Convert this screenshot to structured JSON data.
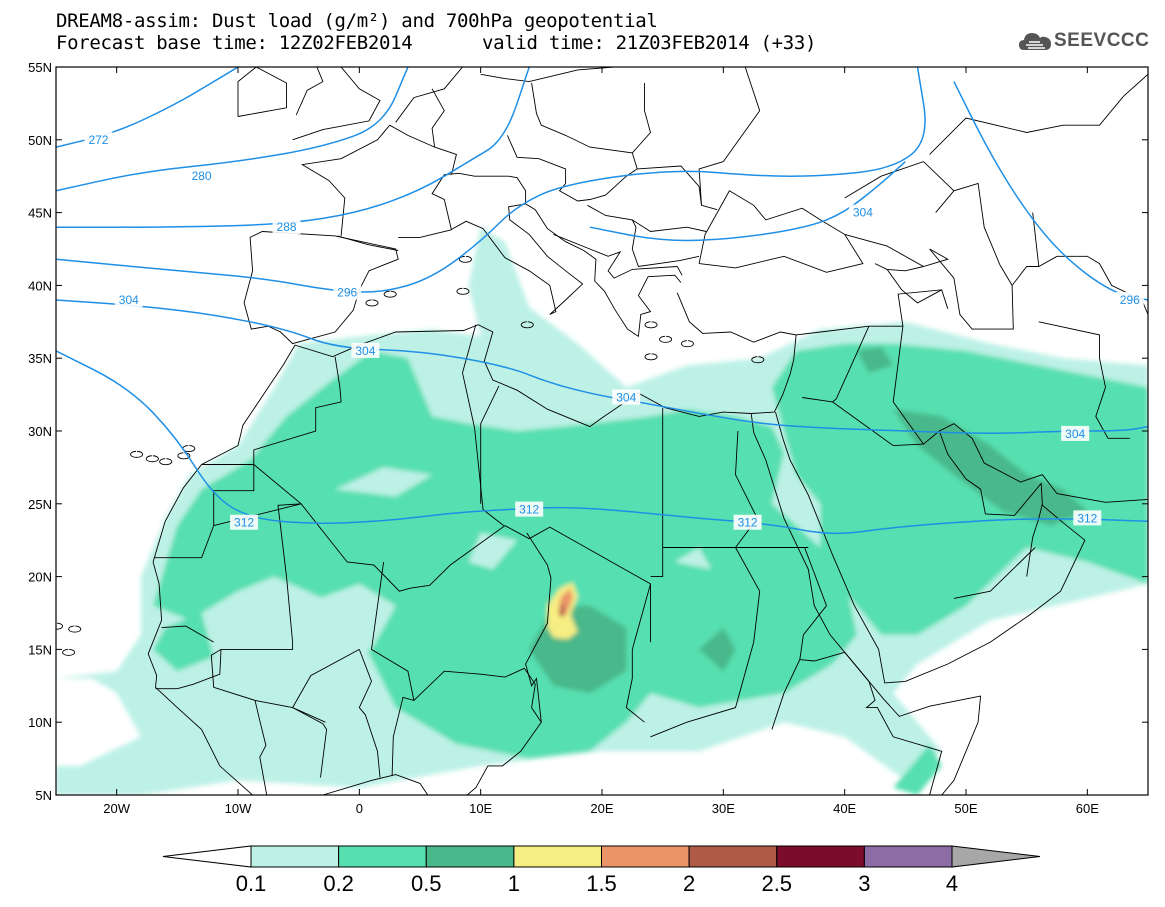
{
  "title": {
    "line1": "DREAM8-assim: Dust load (g/m²) and 700hPa geopotential",
    "base_time": "Forecast base time: 12Z02FEB2014",
    "valid_time": "valid time: 21Z03FEB2014 (+33)"
  },
  "logo": {
    "text": "SEEVCCC",
    "icon": "cloud-icon"
  },
  "map": {
    "lon_range": [
      -25,
      65
    ],
    "lat_range": [
      5,
      55
    ],
    "lat_ticks": [
      {
        "value": 55,
        "label": "55N"
      },
      {
        "value": 50,
        "label": "50N"
      },
      {
        "value": 45,
        "label": "45N"
      },
      {
        "value": 40,
        "label": "40N"
      },
      {
        "value": 35,
        "label": "35N"
      },
      {
        "value": 30,
        "label": "30N"
      },
      {
        "value": 25,
        "label": "25N"
      },
      {
        "value": 20,
        "label": "20N"
      },
      {
        "value": 15,
        "label": "15N"
      },
      {
        "value": 10,
        "label": "10N"
      },
      {
        "value": 5,
        "label": "5N"
      }
    ],
    "lon_ticks": [
      {
        "value": -20,
        "label": "20W"
      },
      {
        "value": -10,
        "label": "10W"
      },
      {
        "value": 0,
        "label": "0"
      },
      {
        "value": 10,
        "label": "10E"
      },
      {
        "value": 20,
        "label": "20E"
      },
      {
        "value": 30,
        "label": "30E"
      },
      {
        "value": 40,
        "label": "40E"
      },
      {
        "value": 50,
        "label": "50E"
      },
      {
        "value": 60,
        "label": "60E"
      }
    ],
    "contour_color": "#1f8fe6",
    "contours": [
      {
        "level": "272",
        "points": [
          [
            -25,
            49.5
          ],
          [
            -20,
            50.5
          ],
          [
            -15,
            52.5
          ],
          [
            -12,
            54
          ],
          [
            -10,
            55
          ]
        ],
        "label_at": [
          -21.5,
          50
        ]
      },
      {
        "level": "280",
        "points": [
          [
            -25,
            46.5
          ],
          [
            -18,
            47.8
          ],
          [
            -10,
            48.5
          ],
          [
            -3,
            49.5
          ],
          [
            2,
            51
          ],
          [
            4,
            55
          ]
        ],
        "label_at": [
          -13,
          47.5
        ]
      },
      {
        "level": "288",
        "points": [
          [
            -25,
            44
          ],
          [
            -15,
            44
          ],
          [
            -6,
            44.2
          ],
          [
            0,
            45
          ],
          [
            5,
            46.5
          ],
          [
            9,
            48.5
          ],
          [
            12,
            50
          ],
          [
            14,
            55
          ]
        ],
        "label_at": [
          -6,
          44
        ]
      },
      {
        "level": "296",
        "points": [
          [
            -25,
            41.8
          ],
          [
            -15,
            41
          ],
          [
            -8,
            40.5
          ],
          [
            -2,
            39.6
          ],
          [
            2,
            39.5
          ],
          [
            6,
            40.5
          ],
          [
            10,
            43
          ],
          [
            13,
            45.5
          ],
          [
            17,
            47
          ],
          [
            26,
            48
          ],
          [
            33,
            47.5
          ],
          [
            38,
            47.5
          ],
          [
            44,
            48
          ],
          [
            47,
            50
          ],
          [
            46,
            55
          ]
        ],
        "label_at": [
          -1,
          39.5
        ]
      },
      {
        "level": "304",
        "points": [
          [
            -25,
            39
          ],
          [
            -18,
            38.6
          ],
          [
            -12,
            38
          ],
          [
            -6,
            37
          ],
          [
            -2,
            35.7
          ],
          [
            5,
            35.5
          ],
          [
            12,
            34.5
          ],
          [
            16,
            33.2
          ],
          [
            20,
            32.4
          ],
          [
            23,
            32
          ],
          [
            28,
            31.2
          ],
          [
            33,
            30.5
          ],
          [
            38,
            30.2
          ],
          [
            45,
            30
          ],
          [
            52,
            29.8
          ],
          [
            58,
            30
          ],
          [
            63,
            30
          ],
          [
            65,
            30.3
          ]
        ],
        "label_at": [
          -19,
          39
        ],
        "label_at2": [
          0.5,
          35.5
        ],
        "label_at3": [
          22,
          32.3
        ],
        "label_at4": [
          59,
          29.8
        ]
      },
      {
        "level": "304",
        "points": [
          [
            19,
            44
          ],
          [
            25,
            43
          ],
          [
            31,
            43.2
          ],
          [
            37,
            44
          ],
          [
            40,
            45
          ],
          [
            43,
            47
          ],
          [
            45,
            48.5
          ]
        ],
        "label_at": [
          41.5,
          45
        ]
      },
      {
        "level": "296",
        "points": [
          [
            49,
            54
          ],
          [
            52,
            49
          ],
          [
            55,
            45
          ],
          [
            58,
            42
          ],
          [
            62,
            39.5
          ],
          [
            65,
            39
          ]
        ],
        "label_at": [
          63.5,
          39
        ]
      },
      {
        "level": "312",
        "points": [
          [
            -25,
            35.5
          ],
          [
            -19,
            33
          ],
          [
            -15,
            29.5
          ],
          [
            -12,
            25.5
          ],
          [
            -9,
            24
          ],
          [
            -4,
            23.6
          ],
          [
            2,
            23.8
          ],
          [
            8,
            24.4
          ],
          [
            12,
            24.6
          ],
          [
            17,
            24.8
          ],
          [
            22,
            24.5
          ],
          [
            28,
            24
          ],
          [
            34,
            23.6
          ],
          [
            39,
            22.8
          ],
          [
            44,
            23.4
          ],
          [
            52,
            23.9
          ],
          [
            58,
            24
          ],
          [
            65,
            23.8
          ]
        ],
        "label_at": [
          -9.5,
          23.7
        ],
        "label_at2": [
          14,
          24.6
        ],
        "label_at3": [
          32,
          23.7
        ],
        "label_at4": [
          60,
          24
        ]
      }
    ]
  },
  "colorbar": {
    "colors": [
      "#ffffff",
      "#bdf1e6",
      "#56dfb0",
      "#49b88a",
      "#f7ee83",
      "#eb9467",
      "#b05a48",
      "#7b0c2a",
      "#8d6ba4",
      "#a7a7a7"
    ],
    "labels": [
      "0.1",
      "0.2",
      "0.5",
      "1",
      "1.5",
      "2",
      "2.5",
      "3",
      "4"
    ]
  },
  "dust_colors": {
    "lvl1": "#bdf1e6",
    "lvl2": "#56dfb0",
    "lvl3": "#49b88a",
    "lvl4": "#f7ee83",
    "lvl5": "#eb9467",
    "lvl6": "#b05a48"
  }
}
